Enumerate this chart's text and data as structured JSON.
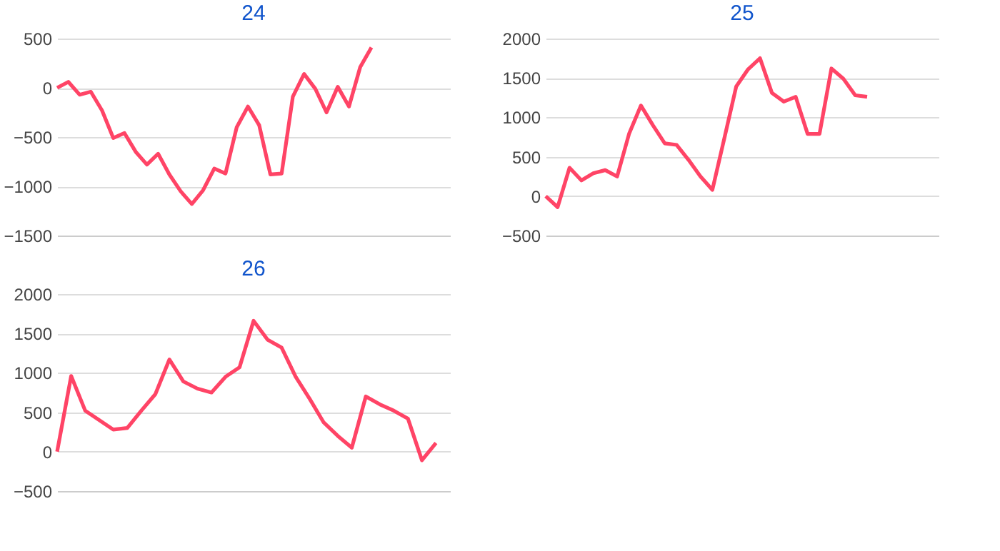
{
  "chart_data": [
    {
      "type": "line",
      "title": "24",
      "categories": [
        null,
        null,
        null,
        null,
        null,
        null,
        null,
        null,
        null,
        null,
        null,
        null,
        null,
        null,
        null,
        null,
        null,
        null,
        null,
        null,
        null,
        null,
        null,
        null,
        null,
        null,
        null,
        null,
        null,
        null,
        null,
        null,
        null,
        null,
        null,
        null
      ],
      "series": [
        {
          "color": "#ff4466",
          "values": [
            0,
            60,
            -70,
            -40,
            -230,
            -510,
            -460,
            -650,
            -780,
            -670,
            -880,
            -1050,
            -1180,
            -1040,
            -820,
            -870,
            -400,
            -190,
            -380,
            -880,
            -870,
            -90,
            140,
            -10,
            -250,
            10,
            -190,
            210,
            410,
            null,
            null,
            null,
            null,
            null,
            null,
            null
          ]
        }
      ],
      "ylim": [
        -1500,
        500
      ],
      "yticks": [
        -1500,
        -1000,
        -500,
        0,
        500
      ],
      "grid": "y",
      "tick_labels": "y",
      "marker": "none",
      "line_style": "solid"
    },
    {
      "type": "line",
      "title": "25",
      "categories": [
        null,
        null,
        null,
        null,
        null,
        null,
        null,
        null,
        null,
        null,
        null,
        null,
        null,
        null,
        null,
        null,
        null,
        null,
        null,
        null,
        null,
        null,
        null,
        null,
        null,
        null,
        null,
        null,
        null,
        null,
        null,
        null,
        null,
        null
      ],
      "series": [
        {
          "color": "#ff4466",
          "values": [
            0,
            -140,
            360,
            200,
            290,
            330,
            250,
            790,
            1150,
            900,
            670,
            650,
            460,
            250,
            80,
            730,
            1390,
            1610,
            1750,
            1310,
            1200,
            1260,
            790,
            790,
            1620,
            1490,
            1280,
            1260,
            null,
            null,
            null,
            null,
            null,
            null
          ]
        }
      ],
      "ylim": [
        -500,
        2000
      ],
      "yticks": [
        -500,
        0,
        500,
        1000,
        1500,
        2000
      ],
      "grid": "y",
      "tick_labels": "y",
      "marker": "none",
      "line_style": "solid"
    },
    {
      "type": "line",
      "title": "26",
      "categories": [
        null,
        null,
        null,
        null,
        null,
        null,
        null,
        null,
        null,
        null,
        null,
        null,
        null,
        null,
        null,
        null,
        null,
        null,
        null,
        null,
        null,
        null,
        null,
        null,
        null,
        null,
        null,
        null,
        null
      ],
      "series": [
        {
          "color": "#ff4466",
          "values": [
            0,
            960,
            520,
            400,
            280,
            300,
            520,
            730,
            1170,
            890,
            800,
            750,
            950,
            1070,
            1660,
            1420,
            1320,
            950,
            670,
            370,
            200,
            50,
            700,
            600,
            520,
            420,
            -110,
            110,
            null
          ]
        }
      ],
      "ylim": [
        -500,
        2000
      ],
      "yticks": [
        -500,
        0,
        500,
        1000,
        1500,
        2000
      ],
      "grid": "y",
      "tick_labels": "y",
      "marker": "none",
      "line_style": "solid"
    }
  ]
}
